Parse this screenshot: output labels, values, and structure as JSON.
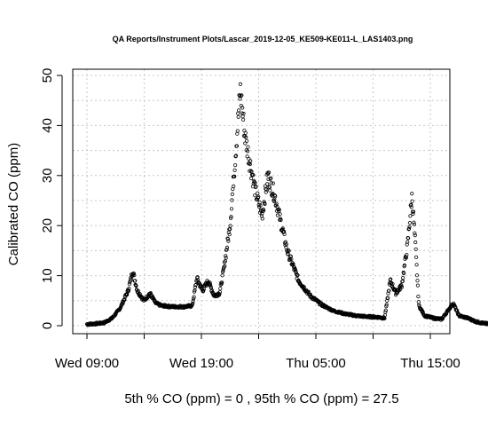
{
  "chart_data": {
    "type": "scatter",
    "title": "QA Reports/Instrument Plots/Lascar_2019-12-05_KE509-KE011-L_LAS1403.png",
    "xlabel": "",
    "ylabel": "Calibrated CO (ppm)",
    "ylim": [
      0,
      50
    ],
    "y_ticks": [
      0,
      10,
      20,
      30,
      40,
      50
    ],
    "x_range_hours": [
      8,
      18
    ],
    "x_tick_labels": [
      {
        "hour": 9,
        "label": "Wed 09:00"
      },
      {
        "hour": 19,
        "label": "Wed 19:00"
      },
      {
        "hour": 29,
        "label": "Thu 05:00"
      },
      {
        "hour": 39,
        "label": "Thu 15:00"
      }
    ],
    "grid": true,
    "marker": "open-circle",
    "footer": "5th % CO (ppm) =  0 , 95th % CO (ppm)  =  27.5",
    "series_profile": [
      [
        9.0,
        0.3
      ],
      [
        9.8,
        0.4
      ],
      [
        10.5,
        0.6
      ],
      [
        11.2,
        1.5
      ],
      [
        11.9,
        3.5
      ],
      [
        12.6,
        7.0
      ],
      [
        13.0,
        11.0
      ],
      [
        13.4,
        7.0
      ],
      [
        14.0,
        5.0
      ],
      [
        14.5,
        6.5
      ],
      [
        15.0,
        4.5
      ],
      [
        15.5,
        4.0
      ],
      [
        16.5,
        3.8
      ],
      [
        17.5,
        3.8
      ],
      [
        18.2,
        4.0
      ],
      [
        18.6,
        9.5
      ],
      [
        19.1,
        7.0
      ],
      [
        19.6,
        9.0
      ],
      [
        20.1,
        6.0
      ],
      [
        20.6,
        6.5
      ],
      [
        21.0,
        12.0
      ],
      [
        21.5,
        20.0
      ],
      [
        22.0,
        35.0
      ],
      [
        22.4,
        47.0
      ],
      [
        22.8,
        38.0
      ],
      [
        23.2,
        33.0
      ],
      [
        23.7,
        27.0
      ],
      [
        24.3,
        22.0
      ],
      [
        24.8,
        30.0
      ],
      [
        25.4,
        26.0
      ],
      [
        26.5,
        15.0
      ],
      [
        27.5,
        9.0
      ],
      [
        28.5,
        6.0
      ],
      [
        29.5,
        4.2
      ],
      [
        30.5,
        3.0
      ],
      [
        31.5,
        2.4
      ],
      [
        32.5,
        2.0
      ],
      [
        33.5,
        1.8
      ],
      [
        34.5,
        1.7
      ],
      [
        35.0,
        1.5
      ],
      [
        35.5,
        9.0
      ],
      [
        36.0,
        6.5
      ],
      [
        36.5,
        8.0
      ],
      [
        37.0,
        16.0
      ],
      [
        37.4,
        26.0
      ],
      [
        37.7,
        16.0
      ],
      [
        38.0,
        4.0
      ],
      [
        38.5,
        2.0
      ],
      [
        39.3,
        1.5
      ],
      [
        40.0,
        1.3
      ],
      [
        41.0,
        4.5
      ],
      [
        41.5,
        2.0
      ],
      [
        42.3,
        1.5
      ],
      [
        43.0,
        0.8
      ],
      [
        43.6,
        0.5
      ],
      [
        44.2,
        0.3
      ]
    ]
  }
}
